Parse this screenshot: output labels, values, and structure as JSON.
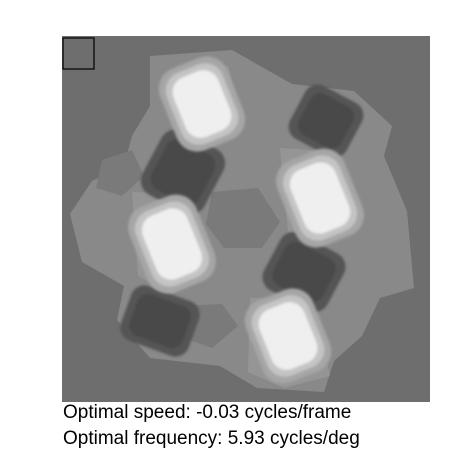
{
  "captions": {
    "speed": "Optimal speed: -0.03 cycles/frame",
    "frequency": "Optimal frequency: 5.93 cycles/deg"
  },
  "colors": {
    "background": "#6e6e6e",
    "hex_region": "#8a8a8a",
    "dark_blob": "#4a4a4a",
    "light_blob": "#efefef",
    "marker_box": "#000000"
  },
  "blob_types": {
    "light": "light-gabor-blob",
    "dark": "dark-gabor-blob"
  }
}
